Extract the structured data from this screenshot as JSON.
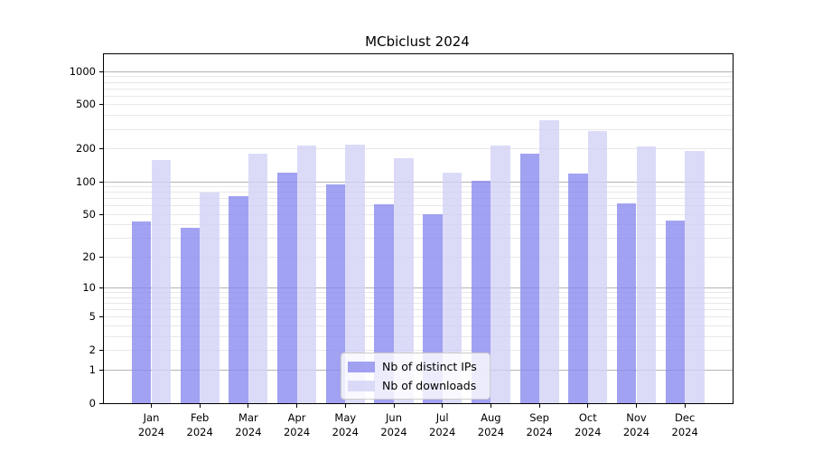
{
  "chart_data": {
    "type": "bar",
    "title": "MCbiclust 2024",
    "year_label": "2024",
    "categories": [
      "Jan",
      "Feb",
      "Mar",
      "Apr",
      "May",
      "Jun",
      "Jul",
      "Aug",
      "Sep",
      "Oct",
      "Nov",
      "Dec"
    ],
    "series": [
      {
        "name": "Nb of distinct IPs",
        "color": "#8888ee",
        "values": [
          43,
          38,
          74,
          122,
          94,
          62,
          50,
          102,
          180,
          119,
          63,
          44
        ]
      },
      {
        "name": "Nb of downloads",
        "color": "#d1d1f6",
        "values": [
          158,
          80,
          181,
          215,
          218,
          164,
          120,
          214,
          363,
          290,
          210,
          190
        ]
      }
    ],
    "bar_opacity": 0.78,
    "yscale": "log10(v+1)",
    "ylim": [
      0,
      1430
    ],
    "yticks": [
      1000,
      500,
      200,
      100,
      50,
      20,
      10,
      5,
      2,
      1,
      0
    ],
    "major_gridlines": [
      1,
      10,
      100,
      1000
    ],
    "minor_gridlines": [
      2,
      3,
      4,
      5,
      6,
      7,
      8,
      9,
      20,
      30,
      40,
      50,
      60,
      70,
      80,
      90,
      200,
      300,
      400,
      500,
      600,
      700,
      800,
      900
    ],
    "grid": true,
    "legend_position": "inside-bottom-center",
    "colors": {
      "background": "#ffffff",
      "spine": "#000000",
      "major_grid": "#b4b4b4",
      "minor_grid": "#e8e8e8",
      "legend_border": "#cccccc",
      "text": "#000000"
    }
  }
}
